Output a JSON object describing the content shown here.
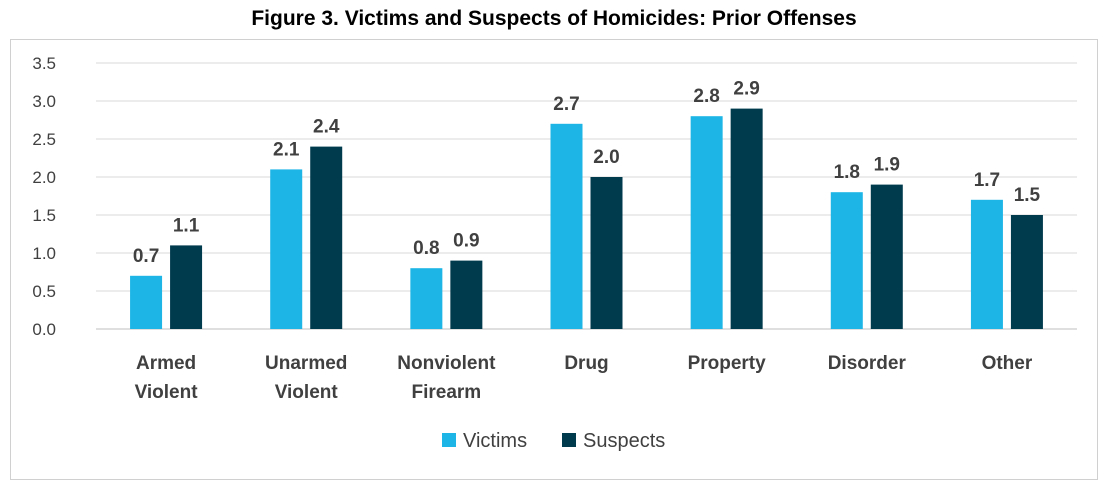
{
  "chart_data": {
    "type": "bar",
    "title": "Figure 3. Victims and Suspects of Homicides: Prior Offenses",
    "xlabel": "",
    "ylabel": "",
    "ylim": [
      0,
      3.5
    ],
    "yticks": [
      "0.0",
      "0.5",
      "1.0",
      "1.5",
      "2.0",
      "2.5",
      "3.0",
      "3.5"
    ],
    "grid": true,
    "legend_position": "bottom",
    "categories": [
      [
        "Armed",
        "Violent"
      ],
      [
        "Unarmed",
        "Violent"
      ],
      [
        "Nonviolent",
        "Firearm"
      ],
      [
        "Drug"
      ],
      [
        "Property"
      ],
      [
        "Disorder"
      ],
      [
        "Other"
      ]
    ],
    "series": [
      {
        "name": "Victims",
        "color": "#1cb5e6",
        "values": [
          0.7,
          2.1,
          0.8,
          2.7,
          2.8,
          1.8,
          1.7
        ],
        "labels": [
          "0.7",
          "2.1",
          "0.8",
          "2.7",
          "2.8",
          "1.8",
          "1.7"
        ]
      },
      {
        "name": "Suspects",
        "color": "#003a4d",
        "values": [
          1.1,
          2.4,
          0.9,
          2.0,
          2.9,
          1.9,
          1.5
        ],
        "labels": [
          "1.1",
          "2.4",
          "0.9",
          "2.0",
          "2.9",
          "1.9",
          "1.5"
        ]
      }
    ]
  }
}
